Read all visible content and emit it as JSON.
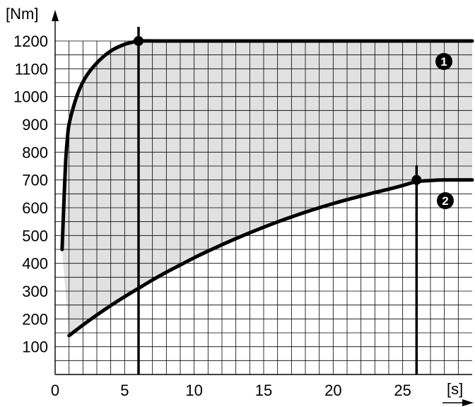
{
  "chart_data": {
    "type": "line",
    "title": "",
    "xlabel": "[s]",
    "ylabel": "[Nm]",
    "xlim": [
      0,
      30
    ],
    "ylim": [
      0,
      1200
    ],
    "x_ticks": [
      0,
      5,
      10,
      15,
      20,
      25
    ],
    "y_ticks": [
      100,
      200,
      300,
      400,
      500,
      600,
      700,
      800,
      900,
      1000,
      1100,
      1200
    ],
    "grid": true,
    "fill_between_series": true,
    "series": [
      {
        "label": "1",
        "x": [
          0.5,
          0.6,
          0.75,
          0.9,
          1.0,
          1.3,
          1.7,
          2.2,
          2.8,
          3.5,
          4.2,
          5.0,
          5.6,
          6.0,
          8,
          10,
          15,
          20,
          25,
          30
        ],
        "y": [
          450,
          580,
          760,
          860,
          900,
          960,
          1020,
          1070,
          1110,
          1145,
          1170,
          1188,
          1196,
          1200,
          1200,
          1200,
          1200,
          1200,
          1200,
          1200
        ]
      },
      {
        "label": "2",
        "x": [
          1,
          2,
          3,
          4,
          5,
          6,
          7,
          8,
          9,
          10,
          11,
          12,
          13,
          14,
          15,
          16,
          17,
          18,
          19,
          20,
          21,
          22,
          23,
          24,
          25,
          26,
          27,
          28,
          29,
          30
        ],
        "y": [
          140,
          178,
          214,
          248,
          280,
          310,
          340,
          368,
          394,
          420,
          444,
          467,
          489,
          510,
          530,
          549,
          567,
          584,
          600,
          615,
          629,
          642,
          655,
          667,
          680,
          694,
          698,
          700,
          700,
          700
        ]
      }
    ],
    "markers": [
      {
        "x": 6,
        "y": 1200
      },
      {
        "x": 26,
        "y": 700
      }
    ],
    "vertical_lines": [
      6,
      26
    ],
    "colors": {
      "line": "#000000",
      "fill": "#e1e1e1",
      "grid": "#000000"
    }
  }
}
